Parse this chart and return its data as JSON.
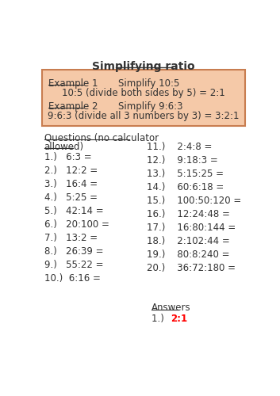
{
  "title": "Simplifying ratio",
  "box_color": "#F5C9A8",
  "box_border": "#C87D50",
  "example1_label": "Example 1",
  "example1_task": "Simplify 10:5",
  "example1_solution": "10:5 (divide both sides by 5) = 2:1",
  "example2_label": "Example 2",
  "example2_task": "Simplify 9:6:3",
  "example2_solution": "9:6:3 (divide all 3 numbers by 3) = 3:2:1",
  "questions_header_line1": "Questions (no calculator",
  "questions_header_line2": "allowed)",
  "left_questions": [
    "1.)   6:3 =",
    "2.)   12:2 =",
    "3.)   16:4 =",
    "4.)   5:25 =",
    "5.)   42:14 =",
    "6.)   20:100 =",
    "7.)   13:2 =",
    "8.)   26:39 =",
    "9.)   55:22 =",
    "10.)  6:16 ="
  ],
  "right_questions": [
    "11.)    2:4:8 =",
    "12.)    9:18:3 =",
    "13.)    5:15:25 =",
    "14.)    60:6:18 =",
    "15.)    100:50:120 =",
    "16.)    12:24:48 =",
    "17.)    16:80:144 =",
    "18.)    2:102:44 =",
    "19.)    80:8:240 =",
    "20.)    36:72:180 ="
  ],
  "answers_label": "Answers",
  "answer1_num": "1.)  ",
  "answer1_val": "2:1",
  "answer_color": "#FF0000",
  "bg_color": "#FFFFFF",
  "text_color": "#333333"
}
